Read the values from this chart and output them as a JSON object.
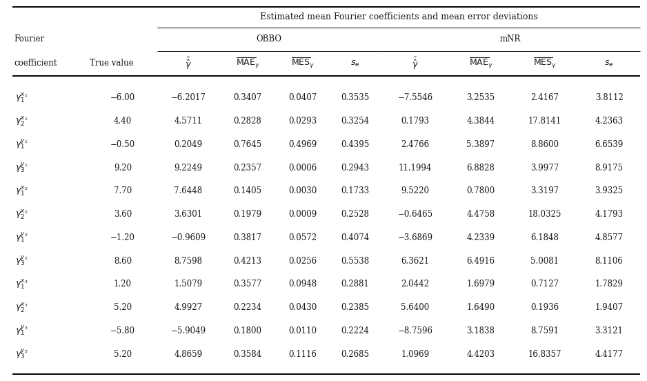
{
  "title": "Estimated mean Fourier coefficients and mean error deviations",
  "true_values": [
    "-6.00",
    "4.40",
    "-0.50",
    "9.20",
    "7.70",
    "3.60",
    "-1.20",
    "8.60",
    "1.20",
    "5.20",
    "-5.80",
    "5.20"
  ],
  "obbo": [
    [
      "-6.2017",
      "0.3407",
      "0.0407",
      "0.3535"
    ],
    [
      "4.5711",
      "0.2828",
      "0.0293",
      "0.3254"
    ],
    [
      "0.2049",
      "0.7645",
      "0.4969",
      "0.4395"
    ],
    [
      "9.2249",
      "0.2357",
      "0.0006",
      "0.2943"
    ],
    [
      "7.6448",
      "0.1405",
      "0.0030",
      "0.1733"
    ],
    [
      "3.6301",
      "0.1979",
      "0.0009",
      "0.2528"
    ],
    [
      "-0.9609",
      "0.3817",
      "0.0572",
      "0.4074"
    ],
    [
      "8.7598",
      "0.4213",
      "0.0256",
      "0.5538"
    ],
    [
      "1.5079",
      "0.3577",
      "0.0948",
      "0.2881"
    ],
    [
      "4.9927",
      "0.2234",
      "0.0430",
      "0.2385"
    ],
    [
      "-5.9049",
      "0.1800",
      "0.0110",
      "0.2224"
    ],
    [
      "4.8659",
      "0.3584",
      "0.1116",
      "0.2685"
    ]
  ],
  "mnr": [
    [
      "-7.5546",
      "3.2535",
      "2.4167",
      "3.8112"
    ],
    [
      "0.1793",
      "4.3844",
      "17.8141",
      "4.2363"
    ],
    [
      "2.4766",
      "5.3897",
      "8.8600",
      "6.6539"
    ],
    [
      "11.1994",
      "6.8828",
      "3.9977",
      "8.9175"
    ],
    [
      "9.5220",
      "0.7800",
      "3.3197",
      "3.9325"
    ],
    [
      "-0.6465",
      "4.4758",
      "18.0325",
      "4.1793"
    ],
    [
      "-3.6869",
      "4.2339",
      "6.1848",
      "4.8577"
    ],
    [
      "6.3621",
      "6.4916",
      "5.0081",
      "8.1106"
    ],
    [
      "2.0442",
      "1.6979",
      "0.7127",
      "1.7829"
    ],
    [
      "5.6400",
      "1.6490",
      "0.1936",
      "1.9407"
    ],
    [
      "-8.7596",
      "3.1838",
      "8.7591",
      "3.3121"
    ],
    [
      "1.0969",
      "4.4203",
      "16.8357",
      "4.4177"
    ]
  ],
  "row_label_math": [
    "$\\gamma_1^{x_1}$",
    "$\\gamma_2^{x_1}$",
    "$\\gamma_1^{y_1}$",
    "$\\gamma_3^{y_1}$",
    "$\\gamma_1^{x_2}$",
    "$\\gamma_2^{x_2}$",
    "$\\gamma_1^{y_2}$",
    "$\\gamma_3^{y_2}$",
    "$\\gamma_1^{x_3}$",
    "$\\gamma_2^{x_3}$",
    "$\\gamma_1^{y_3}$",
    "$\\gamma_3^{y_3}$"
  ],
  "bg_color": "#ffffff",
  "text_color": "#1a1a1a",
  "line_color": "#000000",
  "fig_width": 9.38,
  "fig_height": 5.52,
  "dpi": 100
}
